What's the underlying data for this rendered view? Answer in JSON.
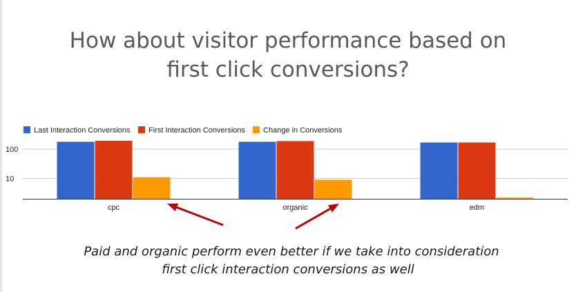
{
  "slide": {
    "title_lines": [
      "How about visitor performance based on",
      "first click conversions?"
    ],
    "caption_lines": [
      "Paid and organic perform even better if we take into consideration",
      "first click interaction conversions as well"
    ]
  },
  "chart_data": {
    "type": "bar",
    "yscale": "log",
    "ylim": [
      2,
      300
    ],
    "yticks": [
      10,
      100
    ],
    "ytick_labels": [
      "10",
      "100"
    ],
    "grid": true,
    "legend_position": "top-left",
    "categories": [
      "cpc",
      "organic",
      "edm"
    ],
    "series": [
      {
        "name": "Last Interaction Conversions",
        "color": "#3366cc",
        "values": [
          180,
          180,
          170
        ]
      },
      {
        "name": "First Interaction Conversions",
        "color": "#dc3912",
        "values": [
          195,
          190,
          170
        ]
      },
      {
        "name": "Change in Conversions",
        "color": "#ff9900",
        "values": [
          11,
          9,
          2.2
        ]
      }
    ],
    "annotations": [
      {
        "type": "arrow",
        "color": "#c00000",
        "target": "cpc"
      },
      {
        "type": "arrow",
        "color": "#c00000",
        "target": "organic"
      }
    ]
  }
}
